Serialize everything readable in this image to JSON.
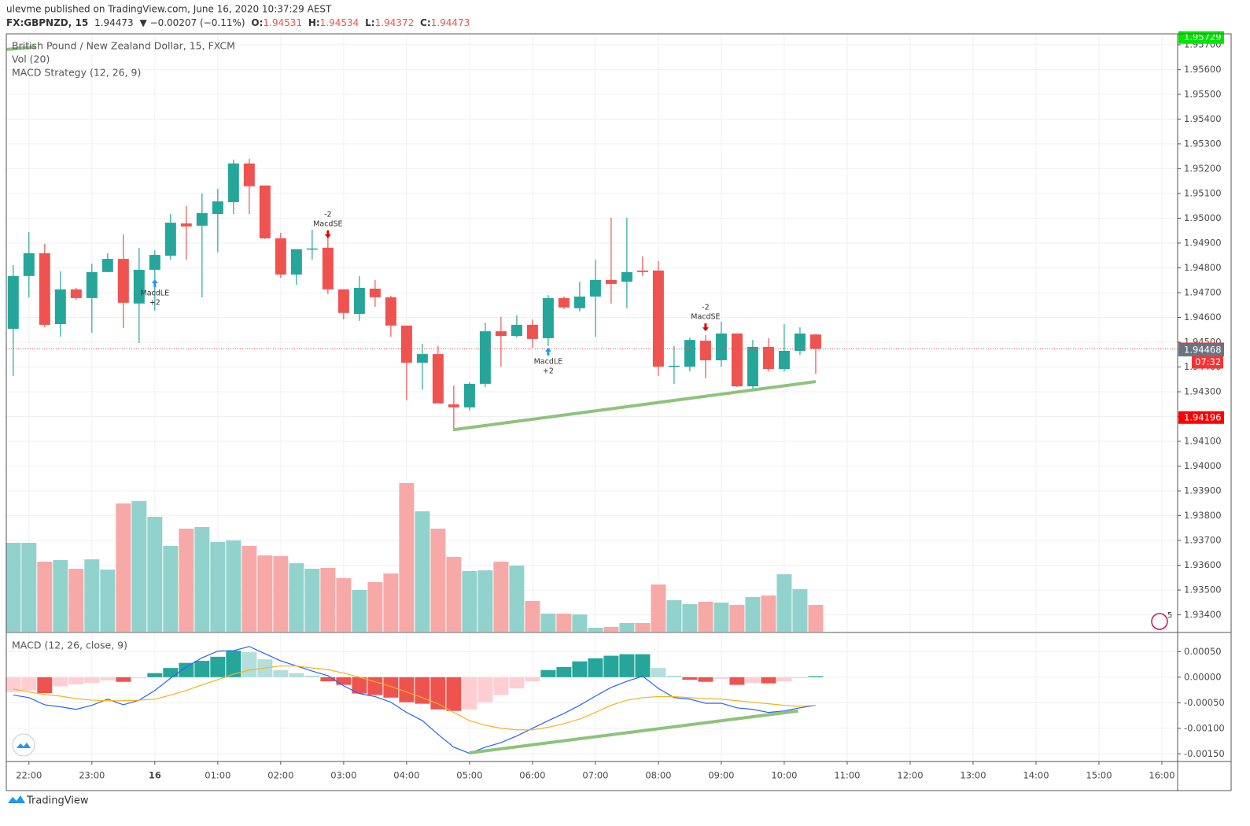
{
  "header": {
    "publisher": "ulevme published on TradingView.com, June 16, 2020 10:37:29 AEST",
    "symbol": "FX:GBPNZD, 15",
    "last": "1.94473",
    "change": "▼ −0.00207 (−0.11%)",
    "ohlc": [
      {
        "key": "O:",
        "value": "1.94531"
      },
      {
        "key": "H:",
        "value": "1.94534"
      },
      {
        "key": "L:",
        "value": "1.94372"
      },
      {
        "key": "C:",
        "value": "1.94473"
      }
    ]
  },
  "footer": "TradingView",
  "badge": "5",
  "chart_data": [
    {
      "type": "candlestick",
      "title": "British Pound / New Zealand Dollar, 15, FXCM",
      "strategy": "MACD Strategy (12, 26, 9)",
      "x": [
        21.75,
        22,
        22.25,
        22.5,
        22.75,
        23,
        23.25,
        23.5,
        23.75,
        24,
        24.25,
        24.5,
        24.75,
        25,
        25.25,
        25.5,
        25.75,
        26,
        26.25,
        26.5,
        26.75,
        27,
        27.25,
        27.5,
        27.75,
        28,
        28.25,
        28.5,
        28.75,
        29,
        29.25,
        29.5,
        29.75,
        30,
        30.25,
        30.5,
        30.75,
        31,
        31.25,
        31.5,
        31.75,
        32,
        32.25,
        32.5,
        32.75,
        33,
        33.25,
        33.5,
        33.75,
        34,
        34.25,
        34.5
      ],
      "open": [
        1.94554,
        1.94767,
        1.94859,
        1.94573,
        1.94713,
        1.94678,
        1.94783,
        1.94836,
        1.94656,
        1.94792,
        1.94849,
        1.94979,
        1.9497,
        1.95017,
        1.95065,
        1.95221,
        1.95132,
        1.94919,
        1.94773,
        1.94875,
        1.94881,
        1.94713,
        1.94614,
        1.94716,
        1.94681,
        1.94567,
        1.94417,
        1.94452,
        1.94249,
        1.94237,
        1.94332,
        1.94544,
        1.94525,
        1.9457,
        1.94516,
        1.94678,
        1.94637,
        1.94684,
        1.94751,
        1.94744,
        1.94789,
        1.94789,
        1.94401,
        1.94401,
        1.94506,
        1.94427,
        1.94535,
        1.94322,
        1.94481,
        1.94392,
        1.94465,
        1.94531
      ],
      "high": [
        1.94811,
        1.94944,
        1.94897,
        1.94786,
        1.94719,
        1.94817,
        1.94859,
        1.94935,
        1.94881,
        1.94871,
        1.95017,
        1.95049,
        1.951,
        1.95119,
        1.95237,
        1.9524,
        1.95132,
        1.94941,
        1.94875,
        1.94954,
        1.94922,
        1.94713,
        1.94767,
        1.94751,
        1.94687,
        1.94567,
        1.94494,
        1.94484,
        1.94325,
        1.94338,
        1.94579,
        1.94602,
        1.94608,
        1.94592,
        1.9469,
        1.94684,
        1.94744,
        1.94833,
        1.95002,
        1.95002,
        1.94846,
        1.94827,
        1.94484,
        1.94519,
        1.94529,
        1.94583,
        1.94535,
        1.94509,
        1.94516,
        1.94573,
        1.9456,
        1.94534
      ],
      "low": [
        1.94364,
        1.94681,
        1.9456,
        1.94522,
        1.94671,
        1.94538,
        1.94783,
        1.94557,
        1.94497,
        1.94627,
        1.94833,
        1.94833,
        1.94681,
        1.94862,
        1.95017,
        1.95017,
        1.94916,
        1.9476,
        1.94732,
        1.94833,
        1.94694,
        1.94592,
        1.94586,
        1.94643,
        1.94522,
        1.94265,
        1.94309,
        1.94253,
        1.94141,
        1.94224,
        1.94319,
        1.94401,
        1.94519,
        1.94478,
        1.94484,
        1.94633,
        1.94624,
        1.94522,
        1.94656,
        1.94637,
        1.94767,
        1.94364,
        1.94332,
        1.94382,
        1.94354,
        1.94401,
        1.94319,
        1.94303,
        1.94382,
        1.94382,
        1.94449,
        1.94372
      ],
      "close": [
        1.94767,
        1.94859,
        1.9457,
        1.94713,
        1.94678,
        1.94783,
        1.94836,
        1.94659,
        1.94792,
        1.94852,
        1.94982,
        1.94967,
        1.95021,
        1.95068,
        1.95221,
        1.95129,
        1.94919,
        1.94773,
        1.94875,
        1.94878,
        1.94713,
        1.94618,
        1.94719,
        1.94681,
        1.94567,
        1.94417,
        1.94452,
        1.94253,
        1.94237,
        1.94332,
        1.94544,
        1.94525,
        1.9457,
        1.94513,
        1.94678,
        1.9464,
        1.94684,
        1.94751,
        1.94735,
        1.94783,
        1.94783,
        1.94401,
        1.94405,
        1.94509,
        1.94427,
        1.94535,
        1.94322,
        1.94481,
        1.94392,
        1.94465,
        1.94535,
        1.94473
      ],
      "up_color": "#26a69a",
      "down_color": "#ef5350",
      "volume": {
        "name": "Vol (20)",
        "ylim": [
          0,
          760
        ],
        "up_color": "#92d2cc",
        "down_color": "#f7a9a7",
        "values": [
          113,
          113,
          89,
          91,
          80,
          92,
          79,
          163,
          166,
          146,
          109,
          131,
          133,
          114,
          116,
          109,
          97,
          96,
          87,
          80,
          81,
          68,
          53,
          63,
          74,
          189,
          153,
          131,
          95,
          77,
          78,
          89,
          84,
          39,
          23,
          23,
          22,
          5,
          6,
          11,
          11,
          60,
          40,
          35,
          38,
          37,
          34,
          44,
          46,
          73,
          54,
          34
        ]
      },
      "ylim": [
        1.93332,
        1.95744
      ],
      "yticks": [
        {
          "value": 1.934,
          "label": "1.93400"
        },
        {
          "value": 1.935,
          "label": "1.93500"
        },
        {
          "value": 1.936,
          "label": "1.93600"
        },
        {
          "value": 1.937,
          "label": "1.93700"
        },
        {
          "value": 1.938,
          "label": "1.93800"
        },
        {
          "value": 1.939,
          "label": "1.93900"
        },
        {
          "value": 1.94,
          "label": "1.94000"
        },
        {
          "value": 1.941,
          "label": "1.94100"
        },
        {
          "value": 1.942,
          "label": "1.94200"
        },
        {
          "value": 1.943,
          "label": "1.94300"
        },
        {
          "value": 1.944,
          "label": "1.94400"
        },
        {
          "value": 1.945,
          "label": "1.94500"
        },
        {
          "value": 1.946,
          "label": "1.94600"
        },
        {
          "value": 1.947,
          "label": "1.94700"
        },
        {
          "value": 1.948,
          "label": "1.94800"
        },
        {
          "value": 1.949,
          "label": "1.94900"
        },
        {
          "value": 1.95,
          "label": "1.95000"
        },
        {
          "value": 1.951,
          "label": "1.95100"
        },
        {
          "value": 1.952,
          "label": "1.95200"
        },
        {
          "value": 1.953,
          "label": "1.95300"
        },
        {
          "value": 1.954,
          "label": "1.95400"
        },
        {
          "value": 1.955,
          "label": "1.95500"
        },
        {
          "value": 1.956,
          "label": "1.95600"
        },
        {
          "value": 1.957,
          "label": "1.95700"
        }
      ],
      "xlim": [
        21.64,
        40.25
      ],
      "xticks": [
        {
          "value": 22,
          "label": "22:00"
        },
        {
          "value": 23,
          "label": "23:00"
        },
        {
          "value": 24,
          "label": "16"
        },
        {
          "value": 25,
          "label": "01:00"
        },
        {
          "value": 26,
          "label": "02:00"
        },
        {
          "value": 27,
          "label": "03:00"
        },
        {
          "value": 28,
          "label": "04:00"
        },
        {
          "value": 29,
          "label": "05:00"
        },
        {
          "value": 30,
          "label": "06:00"
        },
        {
          "value": 31,
          "label": "07:00"
        },
        {
          "value": 32,
          "label": "08:00"
        },
        {
          "value": 33,
          "label": "09:00"
        },
        {
          "value": 34,
          "label": "10:00"
        },
        {
          "value": 35,
          "label": "11:00"
        },
        {
          "value": 36,
          "label": "12:00"
        },
        {
          "value": 37,
          "label": "13:00"
        },
        {
          "value": 38,
          "label": "14:00"
        },
        {
          "value": 39,
          "label": "15:00"
        },
        {
          "value": 40,
          "label": "16:00"
        }
      ],
      "grid": true,
      "price_labels": [
        {
          "value": 1.95729,
          "color": "#00e600"
        },
        {
          "value": 1.94473,
          "color": "#ff3030"
        },
        {
          "value": 1.94468,
          "color": "#6b7380"
        },
        {
          "value": 1.94196,
          "color": "#ff0000"
        }
      ],
      "countdown": "07:32",
      "signals": [
        {
          "x": 24,
          "side": "below",
          "name": "MacdLE",
          "qty": "+2",
          "color": "#2196f3"
        },
        {
          "x": 26.75,
          "side": "above",
          "name": "MacdSE",
          "qty": "-2",
          "color": "#e00000"
        },
        {
          "x": 30.25,
          "side": "below",
          "name": "MacdLE",
          "qty": "+2",
          "color": "#2196f3"
        },
        {
          "x": 32.75,
          "side": "above",
          "name": "MacdSE",
          "qty": "-2",
          "color": "#e00000"
        }
      ],
      "trendlines": [
        {
          "x": [
            28.75,
            34.5
          ],
          "y": [
            1.94147,
            1.94341
          ]
        },
        {
          "x": [
            21.64,
            22.1
          ],
          "y": [
            1.95681,
            1.95691
          ]
        }
      ],
      "trend_color": "#8cc47a"
    },
    {
      "type": "macd",
      "title": "MACD (12, 26, close, 9)",
      "histogram": [
        -0.00029,
        -0.00026,
        -0.00031,
        -0.00018,
        -0.00014,
        -0.00011,
        -6e-05,
        -9e-05,
        -2e-05,
        8e-05,
        0.00018,
        0.00028,
        0.00032,
        0.0004,
        0.00052,
        0.00049,
        0.00035,
        0.00014,
        8e-05,
        3e-05,
        -8e-05,
        -0.00015,
        -0.00032,
        -0.00035,
        -0.0004,
        -0.00049,
        -0.00052,
        -0.00063,
        -0.00066,
        -0.00063,
        -0.00049,
        -0.00035,
        -0.00022,
        -8e-05,
        0.00014,
        0.0002,
        0.00031,
        0.00037,
        0.00042,
        0.00045,
        0.00045,
        0.00018,
        3e-05,
        -5e-05,
        -9e-05,
        -3e-05,
        -0.00015,
        -0.00011,
        -0.00012,
        -8e-05,
        -2e-05,
        2e-05
      ],
      "macd": [
        -0.00035,
        -0.0004,
        -0.00054,
        -0.00058,
        -0.00063,
        -0.00055,
        -0.00043,
        -0.00054,
        -0.00045,
        -0.00026,
        -2e-05,
        0.0002,
        0.00038,
        0.00051,
        0.00052,
        0.0006,
        0.00046,
        0.00032,
        0.00022,
        0.00012,
        3e-05,
        -0.00017,
        -0.00032,
        -0.00038,
        -0.00049,
        -0.00069,
        -0.00085,
        -0.00112,
        -0.00137,
        -0.00149,
        -0.00137,
        -0.00128,
        -0.00115,
        -0.001,
        -0.00085,
        -0.00071,
        -0.00055,
        -0.00037,
        -0.0002,
        -8e-05,
        2e-05,
        -0.00022,
        -0.0004,
        -0.00043,
        -0.00051,
        -0.00051,
        -0.0006,
        -0.00063,
        -0.00069,
        -0.00066,
        -0.0006,
        -0.00055
      ],
      "signal": [
        -0.00023,
        -0.00029,
        -0.00034,
        -0.00037,
        -0.00042,
        -0.00045,
        -0.00046,
        -0.00046,
        -0.00045,
        -0.00043,
        -0.00035,
        -0.00026,
        -0.00015,
        -5e-05,
        6e-05,
        0.00014,
        0.00018,
        0.00022,
        0.00022,
        0.00018,
        0.00015,
        8e-05,
        0,
        -9e-05,
        -0.00018,
        -0.00029,
        -0.0004,
        -0.00052,
        -0.00069,
        -0.00085,
        -0.00094,
        -0.001,
        -0.00103,
        -0.00103,
        -0.00098,
        -0.00091,
        -0.00082,
        -0.00069,
        -0.00055,
        -0.00045,
        -0.0004,
        -0.00038,
        -0.00038,
        -0.0004,
        -0.00042,
        -0.00043,
        -0.00046,
        -0.00049,
        -0.00052,
        -0.00055,
        -0.00057,
        -0.00055
      ],
      "macd_color": "#2962ff",
      "signal_color": "#f5b31a",
      "hist_colors": {
        "pos_up": "#26a69a",
        "pos_down": "#b2dfdb",
        "neg_down": "#ef5350",
        "neg_up": "#ffcdd2"
      },
      "ylim": [
        -0.00165,
        0.00086
      ],
      "yticks": [
        {
          "value": 0.0005,
          "label": "0.00050"
        },
        {
          "value": 0,
          "label": "0.00000"
        },
        {
          "value": -0.0005,
          "label": "-0.00050"
        },
        {
          "value": -0.001,
          "label": "-0.00100"
        },
        {
          "value": -0.0015,
          "label": "-0.00150"
        }
      ],
      "trendlines": [
        {
          "x": [
            29,
            34.22
          ],
          "y": [
            -0.00148,
            -0.00066
          ]
        }
      ]
    }
  ]
}
